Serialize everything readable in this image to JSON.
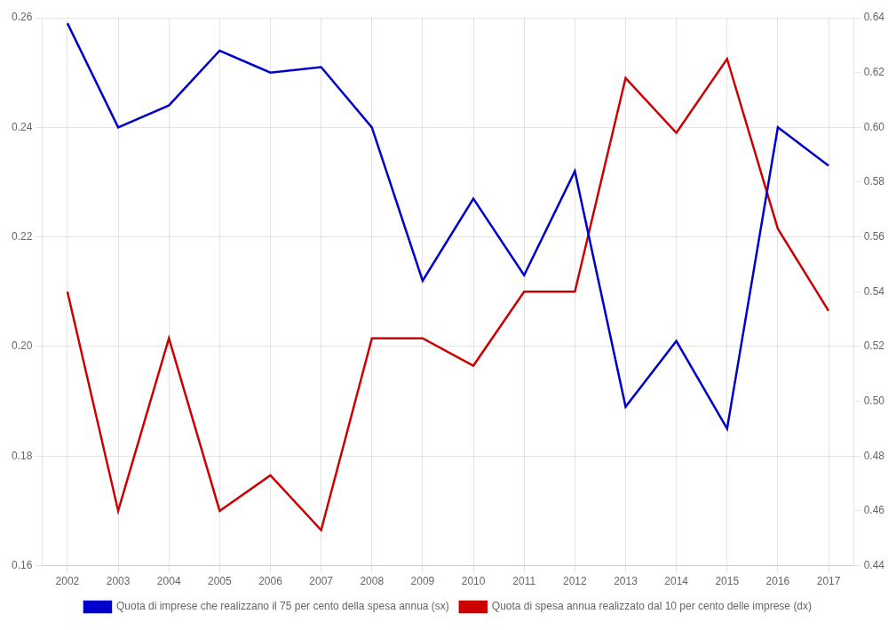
{
  "chart_data": {
    "type": "line",
    "x": [
      2002,
      2003,
      2004,
      2005,
      2006,
      2007,
      2008,
      2009,
      2010,
      2011,
      2012,
      2013,
      2014,
      2015,
      2016,
      2017
    ],
    "series": [
      {
        "name": "Quota di imprese che realizzano il 75 per cento della spesa annua (sx)",
        "color": "#0000cc",
        "values": [
          0.259,
          0.24,
          0.244,
          0.254,
          0.25,
          0.251,
          0.24,
          0.212,
          0.227,
          0.213,
          0.232,
          0.189,
          0.201,
          0.185,
          0.24,
          0.233
        ]
      },
      {
        "name": "Quota di spesa annua realizzato dal 10 per cento delle imprese (dx)",
        "color": "#cc0000",
        "axis": "y2",
        "values": [
          0.54,
          0.46,
          0.523,
          0.46,
          0.473,
          0.453,
          0.523,
          0.523,
          0.513,
          0.54,
          0.54,
          0.618,
          0.598,
          0.625,
          0.563,
          0.533
        ]
      }
    ],
    "xlim": [
      2001.5,
      2017.5
    ],
    "xticks": [
      2002,
      2003,
      2004,
      2005,
      2006,
      2007,
      2008,
      2009,
      2010,
      2011,
      2012,
      2013,
      2014,
      2015,
      2016,
      2017
    ],
    "ylim": [
      0.16,
      0.26
    ],
    "yticks": [
      0.16,
      0.18,
      {
        "value": 0.2,
        "label": "0.20"
      },
      0.22,
      0.24,
      0.26
    ],
    "y2lim": [
      0.44,
      0.64
    ],
    "y2ticks": [
      0.44,
      0.46,
      0.48,
      {
        "value": 0.5,
        "label": "0.50"
      },
      0.52,
      0.54,
      0.56,
      0.58,
      {
        "value": 0.6,
        "label": "0.60"
      },
      0.62,
      0.64
    ],
    "grid": true,
    "legend": "bottom"
  }
}
